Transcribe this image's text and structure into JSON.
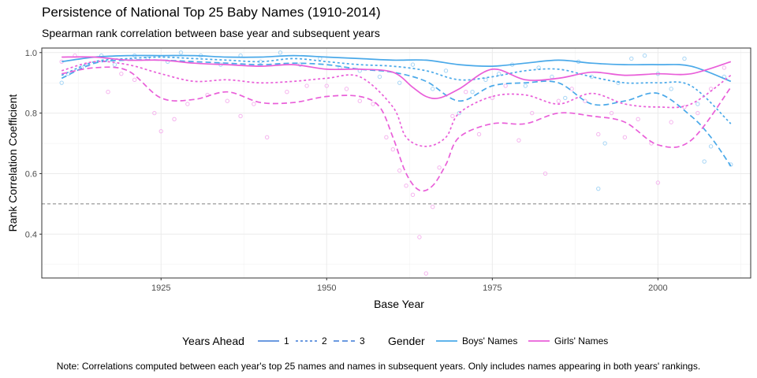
{
  "title": "Persistence of National Top 25 Baby Names (1910-2014)",
  "subtitle": "Spearman rank correlation between base year and subsequent years",
  "note": "Note: Correlations computed between each year's top 25 names and names in subsequent years. Only includes names appearing in both years' rankings.",
  "legend": {
    "years_title": "Years Ahead",
    "years_items": [
      "1",
      "2",
      "3"
    ],
    "gender_title": "Gender",
    "gender_items": [
      "Boys' Names",
      "Girls' Names"
    ]
  },
  "chart_data": {
    "type": "line",
    "title": "Persistence of National Top 25 Baby Names (1910-2014)",
    "subtitle": "Spearman rank correlation between base year and subsequent years",
    "xlabel": "Base Year",
    "ylabel": "Rank Correlation Coefficient",
    "xlim": [
      1907,
      2014
    ],
    "ylim": [
      0.255,
      1.015
    ],
    "x_ticks": [
      1925,
      1950,
      1975,
      2000
    ],
    "y_ticks": [
      0.4,
      0.6,
      0.8,
      1.0
    ],
    "y_tick_labels": [
      "0.4",
      "0.6",
      "0.8",
      "1.0"
    ],
    "reference_line": {
      "y": 0.5,
      "style": "dashed",
      "color": "#808080"
    },
    "grid": true,
    "legend_position": "bottom",
    "colors": {
      "boys": "#4aa9e9",
      "girls": "#e95fd9",
      "boys_points": "#a6d5f5",
      "girls_points": "#f5b4ee"
    },
    "series": [
      {
        "name": "Boys' Names",
        "years_ahead": "1",
        "x": [
          1910,
          1915,
          1920,
          1925,
          1930,
          1935,
          1940,
          1945,
          1950,
          1955,
          1960,
          1965,
          1970,
          1975,
          1980,
          1985,
          1990,
          1995,
          2000,
          2005,
          2011
        ],
        "y": [
          0.97,
          0.985,
          0.99,
          0.99,
          0.99,
          0.985,
          0.985,
          0.99,
          0.985,
          0.98,
          0.975,
          0.975,
          0.96,
          0.955,
          0.965,
          0.975,
          0.965,
          0.96,
          0.96,
          0.955,
          0.905
        ]
      },
      {
        "name": "Boys' Names",
        "years_ahead": "2",
        "x": [
          1910,
          1915,
          1920,
          1925,
          1930,
          1935,
          1940,
          1945,
          1950,
          1955,
          1960,
          1965,
          1970,
          1975,
          1980,
          1985,
          1990,
          1995,
          2000,
          2005,
          2011
        ],
        "y": [
          0.925,
          0.97,
          0.98,
          0.985,
          0.98,
          0.975,
          0.97,
          0.98,
          0.97,
          0.96,
          0.955,
          0.94,
          0.91,
          0.92,
          0.94,
          0.945,
          0.92,
          0.9,
          0.9,
          0.89,
          0.765
        ]
      },
      {
        "name": "Boys' Names",
        "years_ahead": "3",
        "x": [
          1910,
          1915,
          1920,
          1925,
          1930,
          1935,
          1940,
          1945,
          1950,
          1955,
          1960,
          1965,
          1970,
          1975,
          1980,
          1985,
          1990,
          1995,
          2000,
          2005,
          2008,
          2011
        ],
        "y": [
          0.915,
          0.965,
          0.975,
          0.975,
          0.97,
          0.965,
          0.96,
          0.965,
          0.96,
          0.945,
          0.935,
          0.905,
          0.84,
          0.89,
          0.9,
          0.9,
          0.83,
          0.84,
          0.865,
          0.79,
          0.72,
          0.625
        ]
      },
      {
        "name": "Girls' Names",
        "years_ahead": "1",
        "x": [
          1910,
          1915,
          1920,
          1925,
          1930,
          1935,
          1940,
          1945,
          1950,
          1955,
          1960,
          1963,
          1965,
          1967,
          1970,
          1975,
          1980,
          1985,
          1990,
          1995,
          2000,
          2005,
          2011
        ],
        "y": [
          0.985,
          0.985,
          0.975,
          0.975,
          0.965,
          0.96,
          0.955,
          0.96,
          0.945,
          0.945,
          0.935,
          0.885,
          0.855,
          0.85,
          0.88,
          0.945,
          0.91,
          0.915,
          0.935,
          0.925,
          0.93,
          0.93,
          0.97
        ]
      },
      {
        "name": "Girls' Names",
        "years_ahead": "2",
        "x": [
          1910,
          1915,
          1920,
          1925,
          1930,
          1935,
          1940,
          1945,
          1950,
          1955,
          1960,
          1962,
          1965,
          1968,
          1970,
          1975,
          1980,
          1985,
          1990,
          1995,
          2000,
          2005,
          2011
        ],
        "y": [
          0.94,
          0.97,
          0.96,
          0.93,
          0.905,
          0.91,
          0.9,
          0.905,
          0.915,
          0.92,
          0.82,
          0.72,
          0.69,
          0.72,
          0.8,
          0.855,
          0.86,
          0.83,
          0.865,
          0.83,
          0.82,
          0.83,
          0.925
        ]
      },
      {
        "name": "Girls' Names",
        "years_ahead": "3",
        "x": [
          1910,
          1915,
          1920,
          1925,
          1930,
          1935,
          1940,
          1945,
          1950,
          1955,
          1958,
          1960,
          1962,
          1964,
          1966,
          1968,
          1970,
          1975,
          1980,
          1985,
          1990,
          1995,
          2000,
          2005,
          2011
        ],
        "y": [
          0.93,
          0.95,
          0.94,
          0.85,
          0.845,
          0.87,
          0.835,
          0.835,
          0.855,
          0.855,
          0.82,
          0.72,
          0.6,
          0.545,
          0.56,
          0.63,
          0.72,
          0.765,
          0.765,
          0.8,
          0.79,
          0.77,
          0.695,
          0.71,
          0.885
        ]
      }
    ],
    "points_boys": [
      [
        1910,
        0.9
      ],
      [
        1911,
        0.93
      ],
      [
        1913,
        0.95
      ],
      [
        1916,
        0.99
      ],
      [
        1918,
        0.96
      ],
      [
        1921,
        0.99
      ],
      [
        1923,
        0.98
      ],
      [
        1926,
        0.97
      ],
      [
        1928,
        1.0
      ],
      [
        1931,
        0.99
      ],
      [
        1934,
        0.96
      ],
      [
        1937,
        0.99
      ],
      [
        1940,
        0.97
      ],
      [
        1943,
        1.0
      ],
      [
        1946,
        0.96
      ],
      [
        1949,
        0.98
      ],
      [
        1952,
        0.95
      ],
      [
        1955,
        0.94
      ],
      [
        1958,
        0.92
      ],
      [
        1961,
        0.9
      ],
      [
        1963,
        0.96
      ],
      [
        1966,
        0.88
      ],
      [
        1968,
        0.94
      ],
      [
        1970,
        0.8
      ],
      [
        1972,
        0.87
      ],
      [
        1974,
        0.91
      ],
      [
        1976,
        0.93
      ],
      [
        1978,
        0.96
      ],
      [
        1980,
        0.89
      ],
      [
        1982,
        0.95
      ],
      [
        1984,
        0.92
      ],
      [
        1986,
        0.85
      ],
      [
        1988,
        0.97
      ],
      [
        1990,
        0.92
      ],
      [
        1991,
        0.55
      ],
      [
        1992,
        0.7
      ],
      [
        1994,
        0.9
      ],
      [
        1996,
        0.98
      ],
      [
        1998,
        0.99
      ],
      [
        2000,
        0.93
      ],
      [
        2002,
        0.88
      ],
      [
        2004,
        0.98
      ],
      [
        2006,
        0.83
      ],
      [
        2007,
        0.64
      ],
      [
        2008,
        0.69
      ],
      [
        2010,
        0.92
      ],
      [
        2011,
        0.63
      ]
    ],
    "points_girls": [
      [
        1910,
        0.97
      ],
      [
        1912,
        0.99
      ],
      [
        1914,
        0.96
      ],
      [
        1917,
        0.87
      ],
      [
        1919,
        0.93
      ],
      [
        1921,
        0.91
      ],
      [
        1924,
        0.8
      ],
      [
        1925,
        0.74
      ],
      [
        1927,
        0.78
      ],
      [
        1929,
        0.83
      ],
      [
        1932,
        0.86
      ],
      [
        1935,
        0.84
      ],
      [
        1937,
        0.79
      ],
      [
        1939,
        0.83
      ],
      [
        1941,
        0.72
      ],
      [
        1944,
        0.87
      ],
      [
        1947,
        0.89
      ],
      [
        1950,
        0.89
      ],
      [
        1953,
        0.88
      ],
      [
        1955,
        0.84
      ],
      [
        1957,
        0.83
      ],
      [
        1959,
        0.72
      ],
      [
        1960,
        0.68
      ],
      [
        1961,
        0.61
      ],
      [
        1962,
        0.56
      ],
      [
        1963,
        0.53
      ],
      [
        1964,
        0.39
      ],
      [
        1965,
        0.27
      ],
      [
        1966,
        0.49
      ],
      [
        1967,
        0.62
      ],
      [
        1969,
        0.79
      ],
      [
        1971,
        0.87
      ],
      [
        1973,
        0.73
      ],
      [
        1975,
        0.85
      ],
      [
        1977,
        0.89
      ],
      [
        1979,
        0.71
      ],
      [
        1981,
        0.8
      ],
      [
        1983,
        0.6
      ],
      [
        1985,
        0.84
      ],
      [
        1987,
        0.88
      ],
      [
        1989,
        0.84
      ],
      [
        1991,
        0.73
      ],
      [
        1993,
        0.8
      ],
      [
        1995,
        0.72
      ],
      [
        1997,
        0.78
      ],
      [
        1999,
        0.7
      ],
      [
        2000,
        0.57
      ],
      [
        2002,
        0.77
      ],
      [
        2004,
        0.82
      ],
      [
        2006,
        0.8
      ],
      [
        2008,
        0.88
      ],
      [
        2010,
        0.95
      ]
    ]
  }
}
